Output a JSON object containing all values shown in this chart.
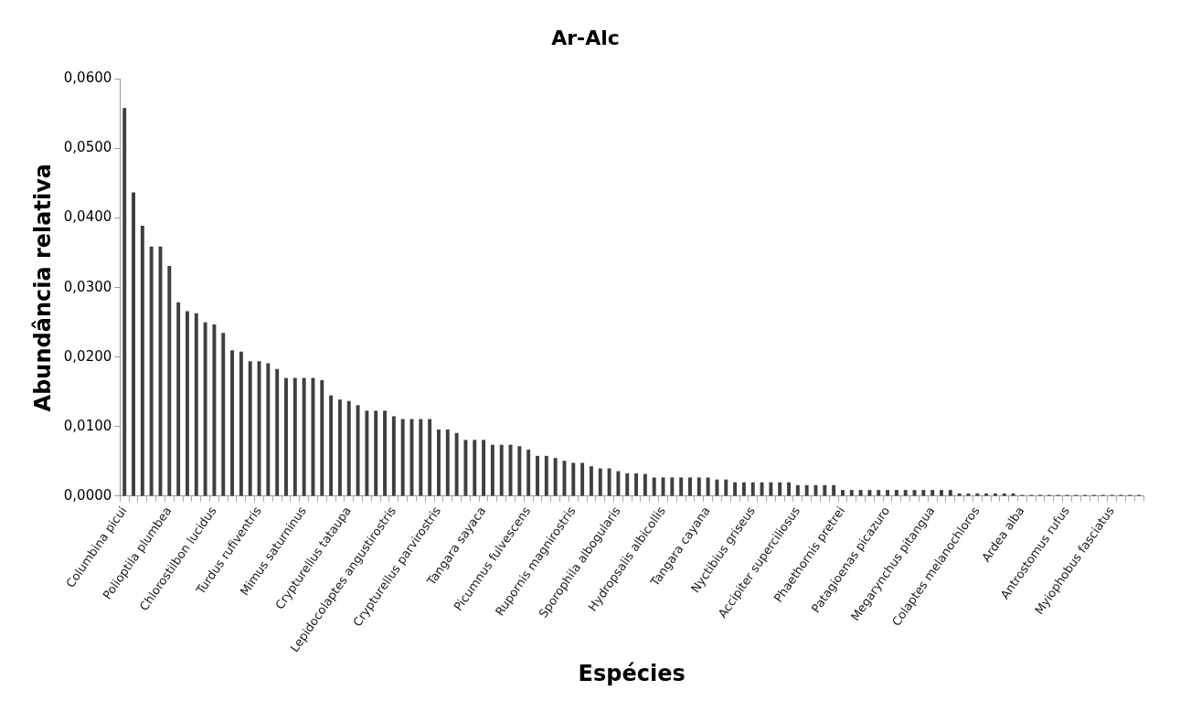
{
  "chart_data": {
    "type": "bar",
    "title": "Ar-Alc",
    "xlabel": "Espécies",
    "ylabel": "Abundância relativa",
    "categories": [
      "Columbina picui",
      null,
      null,
      null,
      null,
      "Polioptila plumbea",
      null,
      null,
      null,
      null,
      "Chlorostilbon lucidus",
      null,
      null,
      null,
      null,
      "Turdus rufiventris",
      null,
      null,
      null,
      null,
      "Mimus saturninus",
      null,
      null,
      null,
      null,
      "Crypturellus tataupa",
      null,
      null,
      null,
      null,
      "Lepidocolaptes angustirostris",
      null,
      null,
      null,
      null,
      "Crypturellus parvirostris",
      null,
      null,
      null,
      null,
      "Tangara sayaca",
      null,
      null,
      null,
      null,
      "Picumnus fulvescens",
      null,
      null,
      null,
      null,
      "Rupornis magnirostris",
      null,
      null,
      null,
      null,
      "Sporophila albogularis",
      null,
      null,
      null,
      null,
      "Hydropsalis albicollis",
      null,
      null,
      null,
      null,
      "Tangara cayana",
      null,
      null,
      null,
      null,
      "Nyctibius griseus",
      null,
      null,
      null,
      null,
      "Accipiter superciliosus",
      null,
      null,
      null,
      null,
      "Phaethornis pretrei",
      null,
      null,
      null,
      null,
      "Patagioenas picazuro",
      null,
      null,
      null,
      null,
      "Megarynchus pitangua",
      null,
      null,
      null,
      null,
      "Colaptes melanochloros",
      null,
      null,
      null,
      null,
      "Ardea alba",
      null,
      null,
      null,
      null,
      "Antrostomus rufus",
      null,
      null,
      null,
      null,
      "Myiophobus fasciatus",
      null,
      null,
      null
    ],
    "values": [
      0.0558,
      0.0437,
      0.0389,
      0.0359,
      0.0359,
      0.0331,
      0.0279,
      0.0266,
      0.0263,
      0.025,
      0.0247,
      0.0235,
      0.021,
      0.0208,
      0.0194,
      0.0194,
      0.0191,
      0.0183,
      0.017,
      0.017,
      0.017,
      0.017,
      0.0167,
      0.0145,
      0.0139,
      0.0137,
      0.0131,
      0.0123,
      0.0123,
      0.0123,
      0.0115,
      0.0111,
      0.0111,
      0.0111,
      0.0111,
      0.0096,
      0.0096,
      0.0091,
      0.0081,
      0.0081,
      0.0081,
      0.0074,
      0.0074,
      0.0074,
      0.0072,
      0.0067,
      0.0058,
      0.0058,
      0.0055,
      0.0051,
      0.0048,
      0.0048,
      0.0043,
      0.004,
      0.004,
      0.0036,
      0.0033,
      0.0033,
      0.0032,
      0.0027,
      0.0027,
      0.0027,
      0.0027,
      0.0027,
      0.0027,
      0.0027,
      0.0024,
      0.0024,
      0.002,
      0.002,
      0.002,
      0.002,
      0.002,
      0.002,
      0.002,
      0.0016,
      0.0016,
      0.0016,
      0.0016,
      0.0016,
      0.0009,
      0.0009,
      0.0009,
      0.0009,
      0.0009,
      0.0009,
      0.0009,
      0.0009,
      0.0009,
      0.0009,
      0.0009,
      0.0009,
      0.0009,
      0.0004,
      0.0004,
      0.0004,
      0.0004,
      0.0004,
      0.0004,
      0.0004,
      0.0002,
      0.0002,
      0.0002,
      0.0002,
      0.0002,
      0.0002,
      0.0002,
      0.0002,
      0.0002,
      0.0002,
      0.0002,
      0.0002,
      0.0002,
      0.0002
    ],
    "color": "#3f3f3f",
    "ylim": [
      0,
      0.06
    ],
    "yticks": [
      {
        "value": 0,
        "label": "0,0000"
      },
      {
        "value": 0.01,
        "label": "0,0100"
      },
      {
        "value": 0.02,
        "label": "0,0200"
      },
      {
        "value": 0.03,
        "label": "0,0300"
      },
      {
        "value": 0.04,
        "label": "0,0400"
      },
      {
        "value": 0.05,
        "label": "0,0500"
      },
      {
        "value": 0.06,
        "label": "0,0600"
      }
    ],
    "grid": false,
    "legend": false
  }
}
